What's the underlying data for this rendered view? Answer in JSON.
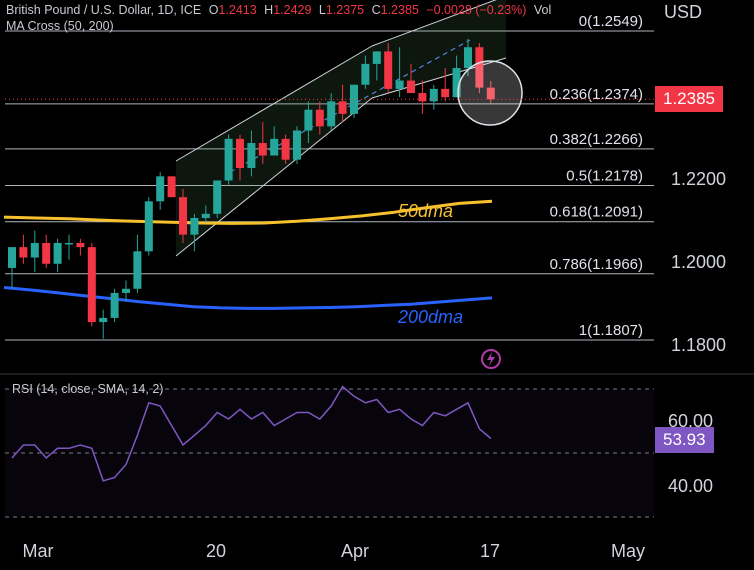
{
  "legend": {
    "symbol": "British Pound / U.S. Dollar, 1D, ICE",
    "open_label": "O",
    "open": "1.2413",
    "high_label": "H",
    "high": "1.2429",
    "low_label": "L",
    "low": "1.2375",
    "close_label": "C",
    "close": "1.2385",
    "change": "−0.0028 (−0.23%)",
    "volume_label": "Vol",
    "indicator": "MA Cross (50, 200)"
  },
  "currency": "USD",
  "price_badge": {
    "value": "1.2385",
    "color": "#f23645"
  },
  "rsi": {
    "label": "RSI (14, close, SMA, 14, 2)",
    "badge": "53.93",
    "badge_color": "#7e57c2",
    "ticks": [
      "60.00",
      "40.00"
    ]
  },
  "colors": {
    "up": "#26a69a",
    "down": "#f23645",
    "ma50": "#f7c12e",
    "ma200": "#2962ff",
    "rsi": "#7e57c2"
  },
  "chart_data": {
    "type": "candlestick",
    "title": "British Pound / U.S. Dollar, 1D, ICE",
    "price_axis": {
      "ticks": [
        "1.2200",
        "1.2000",
        "1.1800"
      ],
      "unit": "USD"
    },
    "time_axis": {
      "ticks": [
        "Mar",
        "20",
        "Apr",
        "17",
        "May"
      ]
    },
    "fibonacci": [
      {
        "label": "0(1.2549)",
        "level": 1.2549
      },
      {
        "label": "0.236(1.2374)",
        "level": 1.2374
      },
      {
        "label": "0.382(1.2266)",
        "level": 1.2266
      },
      {
        "label": "0.5(1.2178)",
        "level": 1.2178
      },
      {
        "label": "0.618(1.2091)",
        "level": 1.2091
      },
      {
        "label": "0.786(1.1966)",
        "level": 1.1966
      },
      {
        "label": "1(1.1807)",
        "level": 1.1807
      }
    ],
    "candles": [
      [
        1.198,
        1.203,
        1.193,
        1.203
      ],
      [
        1.203,
        1.206,
        1.199,
        1.2005
      ],
      [
        1.2005,
        1.207,
        1.197,
        1.204
      ],
      [
        1.204,
        1.206,
        1.198,
        1.199
      ],
      [
        1.199,
        1.205,
        1.197,
        1.204
      ],
      [
        1.204,
        1.206,
        1.2,
        1.204
      ],
      [
        1.204,
        1.205,
        1.201,
        1.203
      ],
      [
        1.203,
        1.204,
        1.184,
        1.185
      ],
      [
        1.185,
        1.188,
        1.181,
        1.186
      ],
      [
        1.186,
        1.193,
        1.185,
        1.192
      ],
      [
        1.192,
        1.195,
        1.19,
        1.193
      ],
      [
        1.193,
        1.206,
        1.192,
        1.202
      ],
      [
        1.202,
        1.215,
        1.201,
        1.214
      ],
      [
        1.214,
        1.221,
        1.212,
        1.22
      ],
      [
        1.22,
        1.22,
        1.215,
        1.215
      ],
      [
        1.215,
        1.217,
        1.204,
        1.206
      ],
      [
        1.206,
        1.211,
        1.202,
        1.21
      ],
      [
        1.21,
        1.213,
        1.209,
        1.211
      ],
      [
        1.211,
        1.219,
        1.21,
        1.219
      ],
      [
        1.219,
        1.23,
        1.218,
        1.229
      ],
      [
        1.229,
        1.23,
        1.219,
        1.222
      ],
      [
        1.222,
        1.231,
        1.22,
        1.228
      ],
      [
        1.228,
        1.233,
        1.223,
        1.225
      ],
      [
        1.225,
        1.232,
        1.225,
        1.229
      ],
      [
        1.229,
        1.23,
        1.223,
        1.224
      ],
      [
        1.224,
        1.232,
        1.223,
        1.231
      ],
      [
        1.231,
        1.238,
        1.228,
        1.236
      ],
      [
        1.236,
        1.238,
        1.23,
        1.232
      ],
      [
        1.232,
        1.24,
        1.231,
        1.238
      ],
      [
        1.238,
        1.242,
        1.233,
        1.235
      ],
      [
        1.235,
        1.242,
        1.234,
        1.242
      ],
      [
        1.242,
        1.249,
        1.241,
        1.247
      ],
      [
        1.247,
        1.25,
        1.243,
        1.25
      ],
      [
        1.25,
        1.252,
        1.24,
        1.241
      ],
      [
        1.241,
        1.251,
        1.239,
        1.243
      ],
      [
        1.243,
        1.247,
        1.24,
        1.24
      ],
      [
        1.24,
        1.243,
        1.235,
        1.238
      ],
      [
        1.238,
        1.242,
        1.236,
        1.241
      ],
      [
        1.241,
        1.246,
        1.238,
        1.239
      ],
      [
        1.239,
        1.249,
        1.239,
        1.246
      ],
      [
        1.246,
        1.253,
        1.244,
        1.251
      ],
      [
        1.251,
        1.252,
        1.24,
        1.2413
      ],
      [
        1.2413,
        1.2429,
        1.2375,
        1.2385
      ]
    ],
    "ma50": {
      "label": "50dma",
      "values": [
        1.2102,
        1.21,
        1.2098,
        1.2095,
        1.2092,
        1.209,
        1.2088,
        1.2087,
        1.2088,
        1.2092,
        1.2098,
        1.2105,
        1.2114,
        1.2125,
        1.2135,
        1.214
      ]
    },
    "ma200": {
      "label": "200dma",
      "values": [
        1.1933,
        1.1927,
        1.192,
        1.1913,
        1.1906,
        1.1899,
        1.1893,
        1.1887,
        1.1884,
        1.1883,
        1.1883,
        1.1884,
        1.1885,
        1.1887,
        1.189,
        1.1893,
        1.1898,
        1.1903,
        1.1908
      ]
    },
    "rsi_values": [
      48,
      52,
      52,
      48,
      51,
      51,
      52,
      51,
      41,
      42,
      46,
      55,
      65,
      64,
      58,
      52,
      55,
      58,
      62,
      60,
      63,
      60,
      62,
      58,
      60,
      62,
      62,
      60,
      64,
      70,
      67,
      65,
      66,
      62,
      63,
      60,
      58,
      62,
      61,
      63,
      65,
      57,
      54
    ]
  }
}
